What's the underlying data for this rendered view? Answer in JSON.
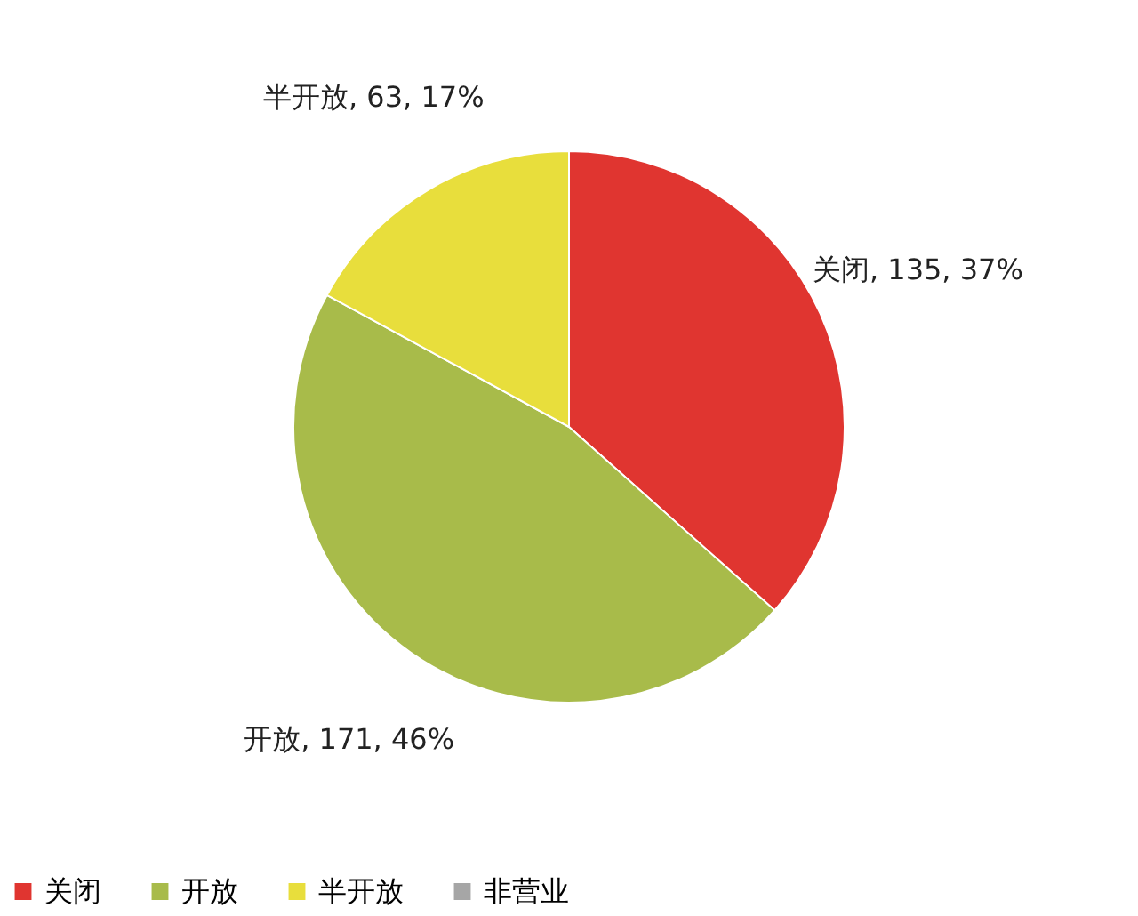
{
  "chart_data": {
    "type": "pie",
    "categories": [
      "关闭",
      "开放",
      "半开放",
      "非营业"
    ],
    "values": [
      135,
      171,
      63,
      0
    ],
    "colors": [
      "#e03530",
      "#a8bb4a",
      "#e8de3c",
      "#a6a6a6"
    ],
    "value_labels": [
      "关闭, 135, 37%",
      "开放, 171, 46%",
      "半开放, 63, 17%",
      null
    ],
    "legend": "bottom"
  }
}
